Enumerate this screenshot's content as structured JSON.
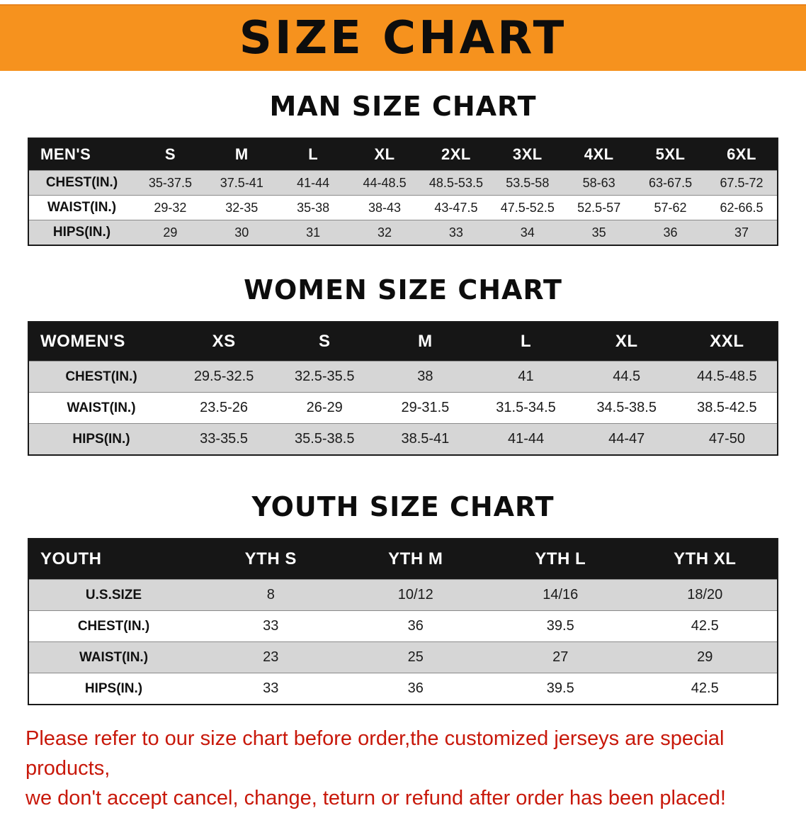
{
  "banner": {
    "title": "SIZE CHART"
  },
  "colors": {
    "banner_bg": "#F6921E",
    "table_header_bg": "#161616",
    "row_alt_bg": "#D6D6D6",
    "disclaimer_red": "#C8180A"
  },
  "sections": [
    {
      "id": "men",
      "heading": "MAN SIZE CHART",
      "table": {
        "header": [
          "MEN'S",
          "S",
          "M",
          "L",
          "XL",
          "2XL",
          "3XL",
          "4XL",
          "5XL",
          "6XL"
        ],
        "rows": [
          {
            "label": "CHEST(IN.)",
            "values": [
              "35-37.5",
              "37.5-41",
              "41-44",
              "44-48.5",
              "48.5-53.5",
              "53.5-58",
              "58-63",
              "63-67.5",
              "67.5-72"
            ]
          },
          {
            "label": "WAIST(IN.)",
            "values": [
              "29-32",
              "32-35",
              "35-38",
              "38-43",
              "43-47.5",
              "47.5-52.5",
              "52.5-57",
              "57-62",
              "62-66.5"
            ]
          },
          {
            "label": "HIPS(IN.)",
            "values": [
              "29",
              "30",
              "31",
              "32",
              "33",
              "34",
              "35",
              "36",
              "37"
            ]
          }
        ]
      }
    },
    {
      "id": "women",
      "heading": "WOMEN SIZE CHART",
      "table": {
        "header": [
          "WOMEN'S",
          "XS",
          "S",
          "M",
          "L",
          "XL",
          "XXL"
        ],
        "rows": [
          {
            "label": "CHEST(IN.)",
            "values": [
              "29.5-32.5",
              "32.5-35.5",
              "38",
              "41",
              "44.5",
              "44.5-48.5"
            ]
          },
          {
            "label": "WAIST(IN.)",
            "values": [
              "23.5-26",
              "26-29",
              "29-31.5",
              "31.5-34.5",
              "34.5-38.5",
              "38.5-42.5"
            ]
          },
          {
            "label": "HIPS(IN.)",
            "values": [
              "33-35.5",
              "35.5-38.5",
              "38.5-41",
              "41-44",
              "44-47",
              "47-50"
            ]
          }
        ]
      }
    },
    {
      "id": "youth",
      "heading": "YOUTH SIZE CHART",
      "table": {
        "header": [
          "YOUTH",
          "YTH S",
          "YTH M",
          "YTH L",
          "YTH XL"
        ],
        "rows": [
          {
            "label": "U.S.SIZE",
            "values": [
              "8",
              "10/12",
              "14/16",
              "18/20"
            ]
          },
          {
            "label": "CHEST(IN.)",
            "values": [
              "33",
              "36",
              "39.5",
              "42.5"
            ]
          },
          {
            "label": "WAIST(IN.)",
            "values": [
              "23",
              "25",
              "27",
              "29"
            ]
          },
          {
            "label": "HIPS(IN.)",
            "values": [
              "33",
              "36",
              "39.5",
              "42.5"
            ]
          }
        ]
      }
    }
  ],
  "disclaimer": {
    "line1": "Please refer to our size chart before order,the customized jerseys are special products,",
    "line2": "we don't accept cancel, change, teturn or refund after order has been placed!"
  }
}
